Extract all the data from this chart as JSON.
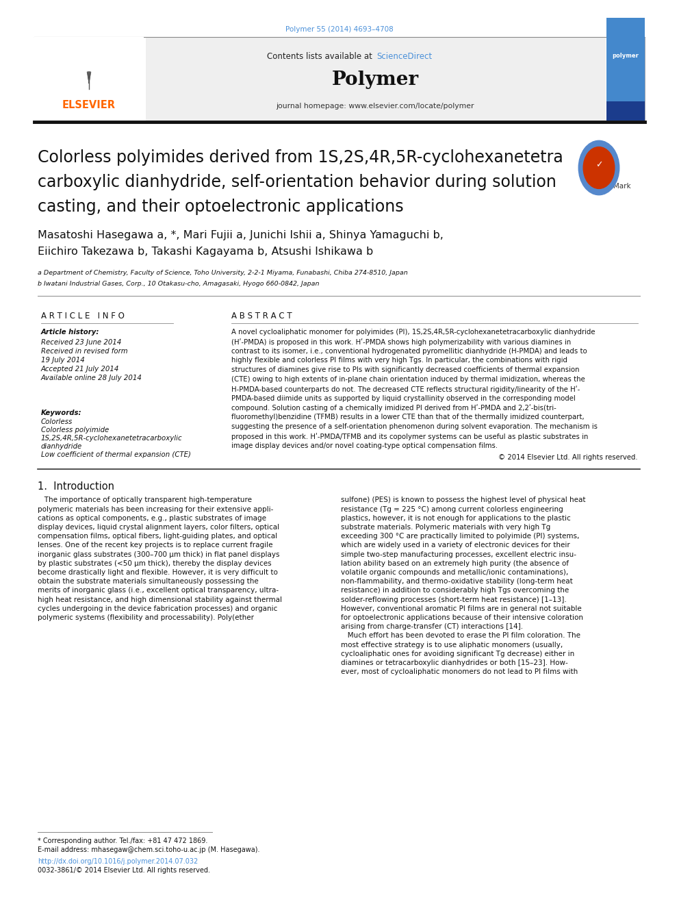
{
  "page_width": 9.92,
  "page_height": 13.23,
  "bg_color": "#ffffff",
  "top_citation": "Polymer 55 (2014) 4693–4708",
  "citation_color": "#4a90d9",
  "header_text_contents": "Contents lists available at ",
  "header_sciencedirect": "ScienceDirect",
  "header_sciencedirect_color": "#4a90d9",
  "journal_name": "Polymer",
  "journal_homepage": "journal homepage: www.elsevier.com/locate/polymer",
  "title_lines": [
    "Colorless polyimides derived from 1S,2S,4R,5R-cyclohexanetetra",
    "carboxylic dianhydride, self-orientation behavior during solution",
    "casting, and their optoelectronic applications"
  ],
  "authors_line1": "Masatoshi Hasegawa a, *, Mari Fujii a, Junichi Ishii a, Shinya Yamaguchi b,",
  "authors_line2": "Eiichiro Takezawa b, Takashi Kagayama b, Atsushi Ishikawa b",
  "affil_a": "a Department of Chemistry, Faculty of Science, Toho University, 2-2-1 Miyama, Funabashi, Chiba 274-8510, Japan",
  "affil_b": "b Iwatani Industrial Gases, Corp., 10 Otakasu-cho, Amagasaki, Hyogo 660-0842, Japan",
  "section_article_info": "A R T I C L E   I N F O",
  "section_abstract": "A B S T R A C T",
  "article_history_label": "Article history:",
  "received": "Received 23 June 2014",
  "received_revised": "Received in revised form",
  "received_revised_date": "19 July 2014",
  "accepted": "Accepted 21 July 2014",
  "available_online": "Available online 28 July 2014",
  "keywords_label": "Keywords:",
  "keywords": [
    "Colorless",
    "Colorless polyimide",
    "1S,2S,4R,5R-cyclohexanetetracarboxylic",
    "dianhydride",
    "Low coefficient of thermal expansion (CTE)"
  ],
  "abstract_lines": [
    "A novel cycloaliphatic monomer for polyimides (PI), 1S,2S,4R,5R-cyclohexanetetracarboxylic dianhydride",
    "(Hʹ-PMDA) is proposed in this work. Hʹ-PMDA shows high polymerizability with various diamines in",
    "contrast to its isomer, i.e., conventional hydrogenated pyromellitic dianhydride (H-PMDA) and leads to",
    "highly flexible and colorless PI films with very high Tgs. In particular, the combinations with rigid",
    "structures of diamines give rise to PIs with significantly decreased coefficients of thermal expansion",
    "(CTE) owing to high extents of in-plane chain orientation induced by thermal imidization, whereas the",
    "H-PMDA-based counterparts do not. The decreased CTE reflects structural rigidity/linearity of the Hʹ-",
    "PMDA-based diimide units as supported by liquid crystallinity observed in the corresponding model",
    "compound. Solution casting of a chemically imidized PI derived from Hʹ-PMDA and 2,2ʹ-bis(tri-",
    "fluoromethyl)benzidine (TFMB) results in a lower CTE than that of the thermally imidized counterpart,",
    "suggesting the presence of a self-orientation phenomenon during solvent evaporation. The mechanism is",
    "proposed in this work. Hʹ-PMDA/TFMB and its copolymer systems can be useful as plastic substrates in",
    "image display devices and/or novel coating-type optical compensation films."
  ],
  "copyright": "© 2014 Elsevier Ltd. All rights reserved.",
  "intro_heading": "1.  Introduction",
  "intro_col1_lines": [
    "   The importance of optically transparent high-temperature",
    "polymeric materials has been increasing for their extensive appli-",
    "cations as optical components, e.g., plastic substrates of image",
    "display devices, liquid crystal alignment layers, color filters, optical",
    "compensation films, optical fibers, light-guiding plates, and optical",
    "lenses. One of the recent key projects is to replace current fragile",
    "inorganic glass substrates (300–700 μm thick) in flat panel displays",
    "by plastic substrates (<50 μm thick), thereby the display devices",
    "become drastically light and flexible. However, it is very difficult to",
    "obtain the substrate materials simultaneously possessing the",
    "merits of inorganic glass (i.e., excellent optical transparency, ultra-",
    "high heat resistance, and high dimensional stability against thermal",
    "cycles undergoing in the device fabrication processes) and organic",
    "polymeric systems (flexibility and processability). Poly(ether"
  ],
  "intro_col2_lines": [
    "sulfone) (PES) is known to possess the highest level of physical heat",
    "resistance (Tg = 225 °C) among current colorless engineering",
    "plastics, however, it is not enough for applications to the plastic",
    "substrate materials. Polymeric materials with very high Tg",
    "exceeding 300 °C are practically limited to polyimide (PI) systems,",
    "which are widely used in a variety of electronic devices for their",
    "simple two-step manufacturing processes, excellent electric insu-",
    "lation ability based on an extremely high purity (the absence of",
    "volatile organic compounds and metallic/ionic contaminations),",
    "non-flammability, and thermo-oxidative stability (long-term heat",
    "resistance) in addition to considerably high Tgs overcoming the",
    "solder-reflowing processes (short-term heat resistance) [1–13].",
    "However, conventional aromatic PI films are in general not suitable",
    "for optoelectronic applications because of their intensive coloration",
    "arising from charge-transfer (CT) interactions [14].",
    "   Much effort has been devoted to erase the PI film coloration. The",
    "most effective strategy is to use aliphatic monomers (usually,",
    "cycloaliphatic ones for avoiding significant Tg decrease) either in",
    "diamines or tetracarboxylic dianhydrides or both [15–23]. How-",
    "ever, most of cycloaliphatic monomers do not lead to PI films with"
  ],
  "footnote_star": "* Corresponding author. Tel./fax: +81 47 472 1869.",
  "footnote_email": "E-mail address: mhasegaw@chem.sci.toho-u.ac.jp (M. Hasegawa).",
  "footnote_doi": "http://dx.doi.org/10.1016/j.polymer.2014.07.032",
  "footnote_doi_color": "#4a90d9",
  "footnote_issn": "0032-3861/© 2014 Elsevier Ltd. All rights reserved.",
  "elsevier_color": "#FF6600",
  "author_sup_color": "#4a90d9"
}
